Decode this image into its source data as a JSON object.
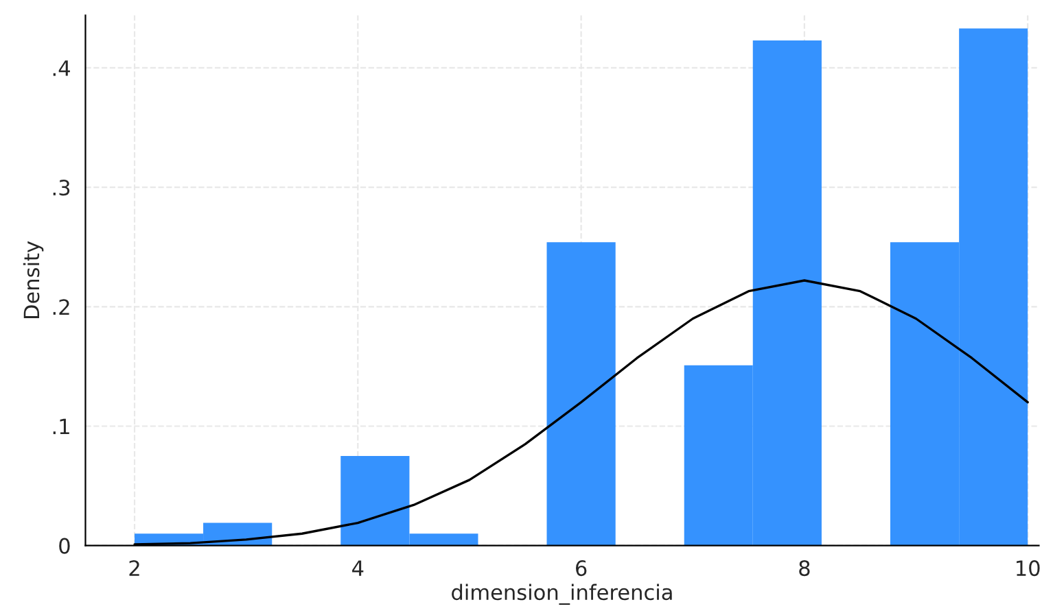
{
  "chart_data": {
    "type": "histogram",
    "xlabel": "dimension_inferencia",
    "ylabel": "Density",
    "color": "#3592fe",
    "bins": [
      2,
      2.615,
      3.231,
      3.846,
      4.462,
      5.077,
      5.692,
      6.308,
      6.923,
      7.538,
      8.154,
      8.769,
      9.385,
      10
    ],
    "values": [
      0.01,
      0.019,
      0,
      0.075,
      0.01,
      0,
      0.254,
      0,
      0.151,
      0.423,
      0,
      0.254,
      0.433
    ],
    "series": [
      {
        "type": "line",
        "color": "#000000",
        "x": [
          2,
          2.5,
          3,
          3.5,
          4,
          4.5,
          5,
          5.5,
          6,
          6.5,
          7,
          7.5,
          8,
          8.5,
          9,
          9.5,
          10
        ],
        "values": [
          0.001,
          0.002,
          0.005,
          0.01,
          0.019,
          0.034,
          0.055,
          0.085,
          0.12,
          0.157,
          0.19,
          0.213,
          0.222,
          0.213,
          0.19,
          0.157,
          0.12
        ]
      }
    ],
    "xlim": [
      1.56,
      10.1
    ],
    "ylim": [
      0,
      0.444
    ],
    "xticks": [
      2,
      4,
      6,
      8,
      10
    ],
    "yticks": [
      0,
      {
        "value": 0.1,
        "label": ".1"
      },
      {
        "value": 0.2,
        "label": ".2"
      },
      {
        "value": 0.3,
        "label": ".3"
      },
      {
        "value": 0.4,
        "label": ".4"
      }
    ],
    "grid": true,
    "legend": false
  }
}
